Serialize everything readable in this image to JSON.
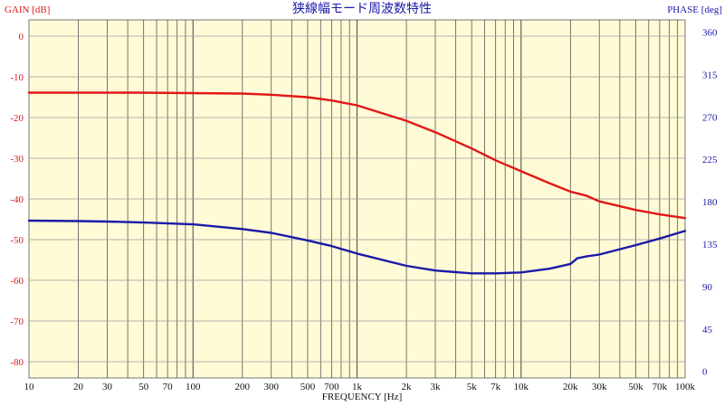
{
  "chart_data": {
    "type": "line",
    "title": "狭線幅モード周波数特性",
    "xlabel": "FREQUENCY [Hz]",
    "ylabel_left": "GAIN [dB]",
    "ylabel_right": "PHASE [deg]",
    "x_scale": "log",
    "xlim": [
      10,
      100000
    ],
    "ylim_left": [
      -84,
      4
    ],
    "ylim_right": [
      -7,
      373
    ],
    "x_ticks": [
      10,
      20,
      30,
      50,
      70,
      100,
      200,
      300,
      500,
      700,
      1000,
      2000,
      3000,
      5000,
      7000,
      10000,
      20000,
      30000,
      50000,
      70000,
      100000
    ],
    "x_tick_labels": [
      "10",
      "20",
      "30",
      "50",
      "70",
      "100",
      "200",
      "300",
      "500",
      "700",
      "1k",
      "2k",
      "3k",
      "5k",
      "7k",
      "10k",
      "20k",
      "30k",
      "50k",
      "70k",
      "100k"
    ],
    "y_left_ticks": [
      0,
      -10,
      -20,
      -30,
      -40,
      -50,
      -60,
      -70,
      -80
    ],
    "y_left_tick_labels": [
      "0",
      "-10",
      "-20",
      "-30",
      "-40",
      "-50",
      "-60",
      "-70",
      "-80"
    ],
    "y_right_ticks": [
      0,
      45,
      90,
      135,
      180,
      225,
      270,
      315,
      360
    ],
    "y_right_tick_labels": [
      "0",
      "45",
      "90",
      "135",
      "180",
      "225",
      "270",
      "315",
      "360"
    ],
    "grid": true,
    "background_color": "#fffbd6",
    "series": [
      {
        "color": "#e01818",
        "axis": "left",
        "x": [
          10,
          50,
          100,
          200,
          300,
          500,
          700,
          1000,
          2000,
          3000,
          5000,
          7000,
          10000,
          15000,
          20000,
          25000,
          30000,
          50000,
          70000,
          100000
        ],
        "y": [
          -13.9,
          -13.9,
          -14.0,
          -14.1,
          -14.4,
          -15.0,
          -15.8,
          -17.0,
          -20.8,
          -23.6,
          -27.6,
          -30.5,
          -33.2,
          -36.2,
          -38.2,
          -39.2,
          -40.6,
          -42.7,
          -43.8,
          -44.7
        ]
      },
      {
        "color": "#1a1aa8",
        "axis": "right",
        "x": [
          10,
          20,
          30,
          50,
          100,
          200,
          300,
          500,
          700,
          1000,
          2000,
          3000,
          5000,
          7000,
          10000,
          15000,
          20000,
          22000,
          25000,
          30000,
          50000,
          70000,
          100000
        ],
        "y": [
          160,
          159.5,
          159,
          158,
          156,
          151,
          147,
          139,
          133,
          125,
          112,
          107,
          104,
          104,
          105,
          109,
          114,
          120,
          122,
          124,
          134,
          141,
          149
        ]
      }
    ]
  }
}
